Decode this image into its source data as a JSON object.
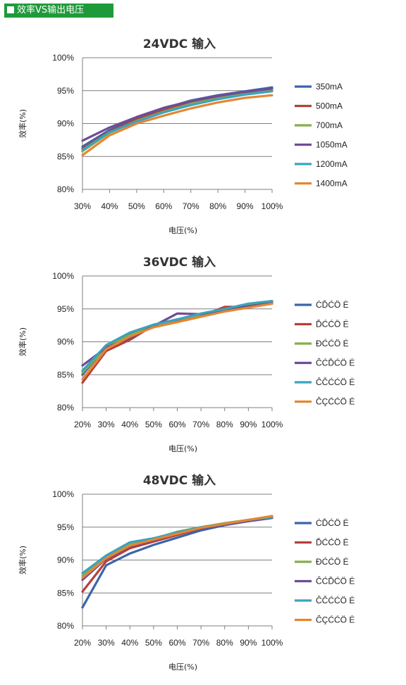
{
  "header": {
    "title": "效率VS输出电压"
  },
  "chart_data": [
    {
      "type": "line",
      "title": "24VDC 输入",
      "xlabel": "电压(%)",
      "ylabel": "效率(%)",
      "categories": [
        "30%",
        "40%",
        "50%",
        "60%",
        "70%",
        "80%",
        "90%",
        "100%"
      ],
      "yticks": [
        "80%",
        "85%",
        "90%",
        "95%",
        "100%"
      ],
      "ylim": [
        80,
        100
      ],
      "grid": true,
      "legend": "right",
      "series": [
        {
          "name": "350mA",
          "color": "#3a65a8",
          "values": [
            86.5,
            89.0,
            90.8,
            92.3,
            93.5,
            94.3,
            94.9,
            95.5
          ]
        },
        {
          "name": "500mA",
          "color": "#b5403b",
          "values": [
            86.2,
            88.8,
            90.6,
            92.0,
            93.2,
            94.0,
            94.7,
            95.3
          ]
        },
        {
          "name": "700mA",
          "color": "#88ad48",
          "values": [
            85.8,
            88.6,
            90.4,
            91.8,
            93.0,
            93.8,
            94.5,
            95.1
          ]
        },
        {
          "name": "1050mA",
          "color": "#6f4c97",
          "values": [
            87.4,
            89.4,
            91.0,
            92.4,
            93.4,
            94.2,
            94.8,
            95.3
          ]
        },
        {
          "name": "1200mA",
          "color": "#3aa3bd",
          "values": [
            86.0,
            88.7,
            90.3,
            91.7,
            92.8,
            93.7,
            94.4,
            94.9
          ]
        },
        {
          "name": "1400mA",
          "color": "#e38732",
          "values": [
            85.2,
            88.2,
            90.0,
            91.2,
            92.3,
            93.2,
            93.9,
            94.3
          ]
        }
      ]
    },
    {
      "type": "line",
      "title": "36VDC 输入",
      "xlabel": "电压(%)",
      "ylabel": "效率(%)",
      "categories": [
        "20%",
        "30%",
        "40%",
        "50%",
        "60%",
        "70%",
        "80%",
        "90%",
        "100%"
      ],
      "yticks": [
        "80%",
        "85%",
        "90%",
        "95%",
        "100%"
      ],
      "ylim": [
        80,
        100
      ],
      "grid": true,
      "legend": "right",
      "series": [
        {
          "name": "ĊĎĆÖ Ė",
          "color": "#3a65a8",
          "values": [
            85.0,
            89.3,
            91.3,
            92.6,
            93.4,
            94.2,
            94.9,
            95.5,
            96.0
          ]
        },
        {
          "name": "ĎĆĆÖ Ė",
          "color": "#b5403b",
          "values": [
            83.8,
            88.6,
            90.3,
            92.5,
            93.3,
            93.9,
            95.3,
            95.3,
            95.8
          ]
        },
        {
          "name": "ĐĆĆÖ Ė",
          "color": "#88ad48",
          "values": [
            85.3,
            89.2,
            91.0,
            92.4,
            93.4,
            94.1,
            94.9,
            95.6,
            96.0
          ]
        },
        {
          "name": "ĈĆĎĆÖ Ė",
          "color": "#6f4c97",
          "values": [
            86.4,
            89.1,
            90.6,
            92.4,
            94.3,
            94.2,
            94.9,
            95.4,
            95.9
          ]
        },
        {
          "name": "ĈČĆĆÖ Ė",
          "color": "#3aa3bd",
          "values": [
            85.6,
            89.5,
            91.4,
            92.6,
            93.4,
            94.3,
            95.0,
            95.8,
            96.2
          ]
        },
        {
          "name": "ĈÇĆĆÖ Ė",
          "color": "#e38732",
          "values": [
            84.3,
            88.9,
            90.8,
            92.2,
            93.0,
            93.8,
            94.6,
            95.2,
            95.8
          ]
        }
      ]
    },
    {
      "type": "line",
      "title": "48VDC 输入",
      "xlabel": "电压(%)",
      "ylabel": "效率(%)",
      "categories": [
        "20%",
        "30%",
        "40%",
        "50%",
        "60%",
        "70%",
        "80%",
        "90%",
        "100%"
      ],
      "yticks": [
        "80%",
        "85%",
        "90%",
        "95%",
        "100%"
      ],
      "ylim": [
        80,
        100
      ],
      "grid": true,
      "legend": "right",
      "series": [
        {
          "name": "ĊĎĆÖ Ė",
          "color": "#3a65a8",
          "values": [
            82.8,
            89.2,
            91.0,
            92.3,
            93.4,
            94.5,
            95.3,
            95.9,
            96.4
          ]
        },
        {
          "name": "ĎĆĆÖ Ė",
          "color": "#b5403b",
          "values": [
            85.2,
            89.8,
            91.8,
            92.8,
            93.8,
            94.8,
            95.4,
            96.0,
            96.5
          ]
        },
        {
          "name": "ĐĆĆÖ Ė",
          "color": "#88ad48",
          "values": [
            87.6,
            90.5,
            92.4,
            93.2,
            94.3,
            95.0,
            95.6,
            96.1,
            96.6
          ]
        },
        {
          "name": "ĈĆĎĆÖ Ė",
          "color": "#6f4c97",
          "values": [
            87.0,
            90.2,
            92.1,
            93.0,
            94.0,
            94.8,
            95.4,
            95.9,
            96.4
          ]
        },
        {
          "name": "ĈČĆĆÖ Ė",
          "color": "#3aa3bd",
          "values": [
            88.0,
            90.7,
            92.7,
            93.3,
            94.2,
            95.0,
            95.5,
            96.1,
            96.5
          ]
        },
        {
          "name": "ĈÇĆĆÖ Ė",
          "color": "#e38732",
          "values": [
            87.3,
            90.3,
            92.2,
            93.1,
            94.0,
            94.9,
            95.5,
            96.1,
            96.7
          ]
        }
      ]
    }
  ]
}
